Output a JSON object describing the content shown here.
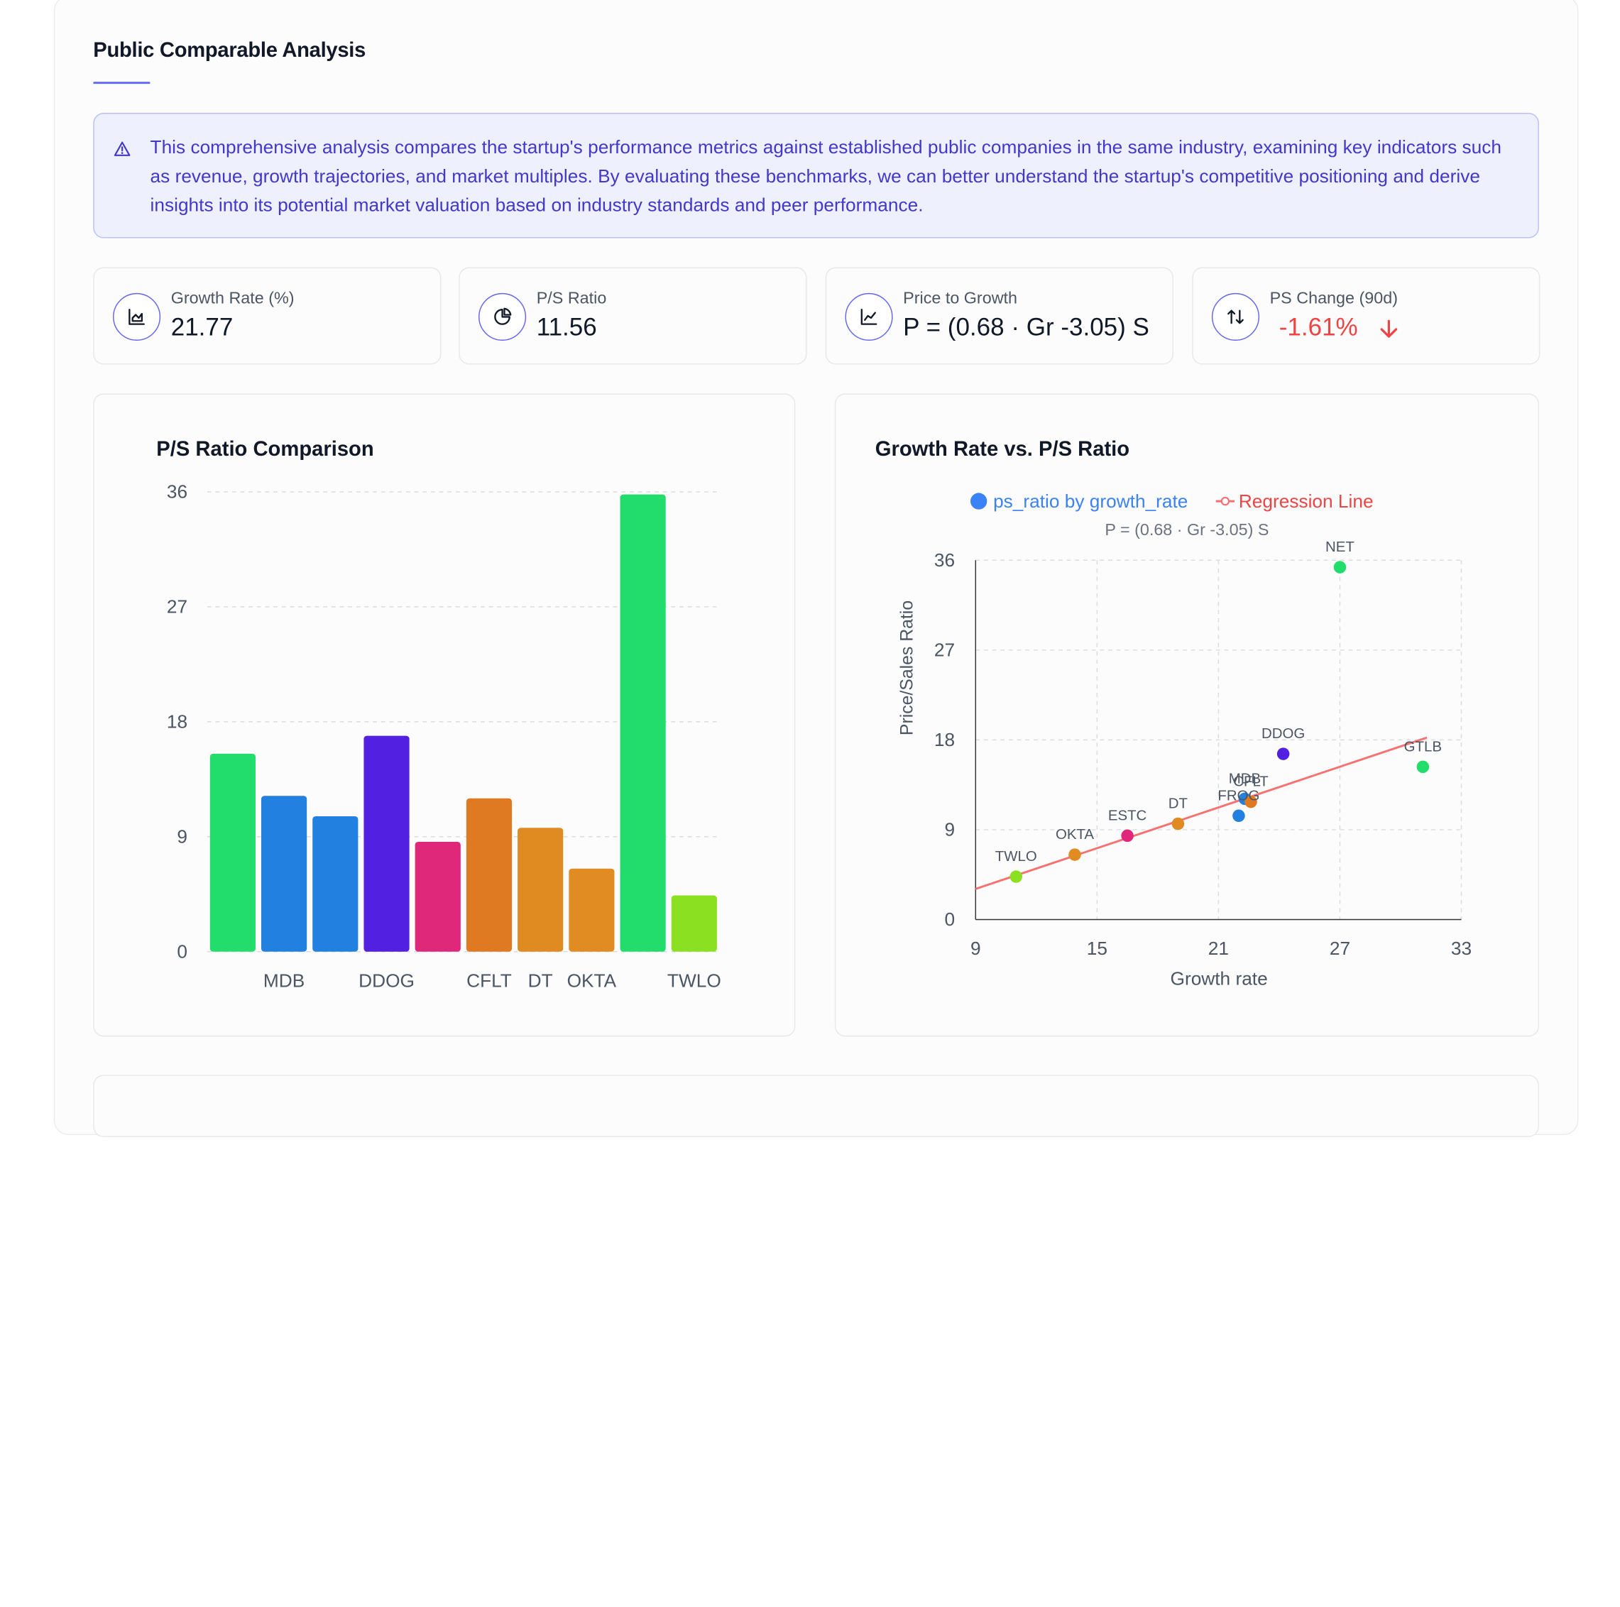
{
  "section": {
    "title": "Public Comparable Analysis"
  },
  "alert": {
    "text": "This comprehensive analysis compares the startup's performance metrics against established public companies in the same industry, examining key indicators such as revenue, growth trajectories, and market multiples. By evaluating these benchmarks, we can better understand the startup's competitive positioning and derive insights into its potential market valuation based on industry standards and peer performance.",
    "icon": "alert-triangle-icon"
  },
  "kpis": [
    {
      "label": "Growth Rate (%)",
      "value": "21.77",
      "icon": "area-chart-icon"
    },
    {
      "label": "P/S Ratio",
      "value": "11.56",
      "icon": "pie-chart-icon"
    },
    {
      "label": "Price to Growth",
      "value": "P = (0.68 · Gr -3.05) S",
      "icon": "line-chart-icon"
    },
    {
      "label": "PS Change (90d)",
      "value": "-1.61%",
      "icon": "swap-vertical-icon",
      "trend": "down",
      "trend_color": "#ef4444"
    }
  ],
  "colors": {
    "accent": "#6366f1",
    "regression": "#f87171",
    "legend_dot": "#3b82f6"
  },
  "chart_data": [
    {
      "type": "bar",
      "title": "P/S Ratio Comparison",
      "categories": [
        "GTLB",
        "MDB",
        "FROG",
        "DDOG",
        "ESTC",
        "CFLT",
        "DT",
        "OKTA",
        "NET",
        "TWLO"
      ],
      "tick_labels": [
        "",
        "MDB",
        "",
        "DDOG",
        "",
        "CFLT",
        "DT",
        "OKTA",
        "",
        "TWLO"
      ],
      "values": [
        15.5,
        12.2,
        10.6,
        16.9,
        8.6,
        12.0,
        9.7,
        6.5,
        35.8,
        4.4
      ],
      "colors": [
        "#22dd6c",
        "#2280e0",
        "#2280e0",
        "#5220e0",
        "#e0287a",
        "#e07a22",
        "#e08a22",
        "#e08c22",
        "#22dd6c",
        "#8ce022"
      ],
      "ylim": [
        0,
        36
      ],
      "yticks": [
        0,
        9,
        18,
        27,
        36
      ],
      "grid": true
    },
    {
      "type": "scatter",
      "title": "Growth Rate vs. P/S Ratio",
      "subtitle": "P = (0.68 · Gr -3.05) S",
      "xlabel": "Growth rate",
      "ylabel": "Price/Sales Ratio",
      "xlim": [
        9,
        33
      ],
      "ylim": [
        0,
        36
      ],
      "xticks": [
        9,
        15,
        21,
        27,
        33
      ],
      "yticks": [
        0,
        9,
        18,
        27,
        36
      ],
      "legend": [
        "ps_ratio by growth_rate",
        "Regression Line"
      ],
      "legend_position": "top-center",
      "grid": true,
      "points": [
        {
          "label": "NET",
          "x": 27.0,
          "y": 35.3,
          "color": "#22dd6c"
        },
        {
          "label": "GTLB",
          "x": 31.1,
          "y": 15.3,
          "color": "#22dd6c"
        },
        {
          "label": "DDOG",
          "x": 24.2,
          "y": 16.6,
          "color": "#5220e0"
        },
        {
          "label": "MDB",
          "x": 22.3,
          "y": 12.1,
          "color": "#2280e0"
        },
        {
          "label": "CFLT",
          "x": 22.6,
          "y": 11.8,
          "color": "#e07a22"
        },
        {
          "label": "FROG",
          "x": 22.0,
          "y": 10.4,
          "color": "#2280e0"
        },
        {
          "label": "DT",
          "x": 19.0,
          "y": 9.6,
          "color": "#e08a22"
        },
        {
          "label": "ESTC",
          "x": 16.5,
          "y": 8.4,
          "color": "#e0287a"
        },
        {
          "label": "OKTA",
          "x": 13.9,
          "y": 6.5,
          "color": "#e08c22"
        },
        {
          "label": "TWLO",
          "x": 11.0,
          "y": 4.3,
          "color": "#8ce022"
        }
      ],
      "regression": {
        "slope": 0.68,
        "intercept": -3.05
      }
    }
  ]
}
